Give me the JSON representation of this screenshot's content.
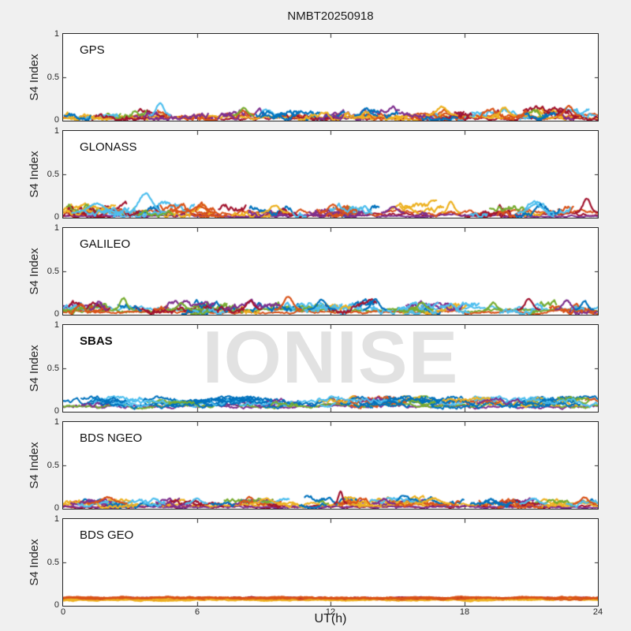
{
  "figure": {
    "title": "NMBT20250918"
  },
  "watermark": {
    "text": "IONISE"
  },
  "chart_data": {
    "type": "line",
    "title": "NMBT20250918",
    "xlabel": "UT(h)",
    "ylabel": "S4 Index",
    "xlim": [
      0,
      24
    ],
    "ylim": [
      0,
      1
    ],
    "xticks": [
      0,
      6,
      12,
      18,
      24
    ],
    "yticks": [
      0,
      0.5,
      1
    ],
    "xtick_labels": [
      "0",
      "6",
      "12",
      "18",
      "24"
    ],
    "ytick_labels": [
      "0",
      "0.5",
      "1"
    ],
    "grid": false,
    "legend": "none",
    "axis_color": "#262626",
    "background": "#f0f0f0",
    "palette": [
      "#0072BD",
      "#D95319",
      "#EDB120",
      "#7E2F8E",
      "#77AC30",
      "#4DBEEE",
      "#A2142F"
    ],
    "panels": [
      {
        "label": "GPS",
        "bold": false,
        "seed": 11,
        "s4_typical": [
          0.02,
          0.15
        ],
        "series": {
          "count": 62,
          "len": [
            0.4,
            2.4
          ],
          "base": [
            0.02,
            0.1
          ],
          "jitter": 0.028,
          "vmax": 0.17,
          "lw": 2.2,
          "colors": [
            0,
            1,
            2,
            3,
            4,
            5,
            6
          ]
        },
        "baselines": [
          {
            "c": 6,
            "base": 0.03,
            "j": 0.012
          },
          {
            "c": 1,
            "base": 0.05,
            "j": 0.015
          },
          {
            "c": 2,
            "base": 0.04,
            "j": 0.012
          }
        ],
        "events": [
          {
            "t": 4.35,
            "v": 0.2,
            "c": 5,
            "w": 0.5
          },
          {
            "t": 8.1,
            "v": 0.15,
            "c": 4,
            "w": 0.45
          },
          {
            "t": 13.6,
            "v": 0.14,
            "c": 0,
            "w": 0.5
          },
          {
            "t": 17.0,
            "v": 0.16,
            "c": 2,
            "w": 0.7
          },
          {
            "t": 19.8,
            "v": 0.15,
            "c": 2,
            "w": 0.5
          },
          {
            "t": 22.7,
            "v": 0.17,
            "c": 1,
            "w": 0.5
          }
        ]
      },
      {
        "label": "GLONASS",
        "bold": false,
        "seed": 22,
        "s4_typical": [
          0.02,
          0.3
        ],
        "series": {
          "count": 55,
          "len": [
            0.4,
            2.4
          ],
          "base": [
            0.02,
            0.12
          ],
          "jitter": 0.03,
          "vmax": 0.2,
          "lw": 2.2,
          "colors": [
            0,
            1,
            2,
            3,
            4,
            5,
            6
          ]
        },
        "baselines": [
          {
            "c": 6,
            "base": 0.03,
            "j": 0.012
          },
          {
            "c": 3,
            "base": 0.02,
            "j": 0.008
          },
          {
            "c": 1,
            "base": 0.06,
            "j": 0.015
          }
        ],
        "events": [
          {
            "t": 1.5,
            "v": 0.16,
            "c": 5,
            "w": 1.1
          },
          {
            "t": 3.7,
            "v": 0.28,
            "c": 5,
            "w": 0.9
          },
          {
            "t": 6.1,
            "v": 0.13,
            "c": 1,
            "w": 0.8
          },
          {
            "t": 9.5,
            "v": 0.14,
            "c": 2,
            "w": 0.6
          },
          {
            "t": 12.1,
            "v": 0.15,
            "c": 1,
            "w": 0.6
          },
          {
            "t": 14.8,
            "v": 0.13,
            "c": 3,
            "w": 0.5
          },
          {
            "t": 17.4,
            "v": 0.19,
            "c": 2,
            "w": 0.4
          },
          {
            "t": 21.2,
            "v": 0.16,
            "c": 5,
            "w": 0.8
          },
          {
            "t": 23.5,
            "v": 0.22,
            "c": 6,
            "w": 0.5
          }
        ]
      },
      {
        "label": "GALILEO",
        "bold": false,
        "seed": 33,
        "s4_typical": [
          0.03,
          0.22
        ],
        "series": {
          "count": 58,
          "len": [
            0.4,
            2.6
          ],
          "base": [
            0.03,
            0.11
          ],
          "jitter": 0.03,
          "vmax": 0.18,
          "lw": 2.2,
          "colors": [
            5,
            5,
            5,
            0,
            0,
            1,
            4,
            4,
            6,
            3,
            2
          ]
        },
        "baselines": [
          {
            "c": 5,
            "base": 0.06,
            "j": 0.015
          },
          {
            "c": 4,
            "base": 0.05,
            "j": 0.012
          },
          {
            "c": 1,
            "base": 0.03,
            "j": 0.01
          }
        ],
        "events": [
          {
            "t": 1.6,
            "v": 0.15,
            "c": 3,
            "w": 0.4
          },
          {
            "t": 2.7,
            "v": 0.19,
            "c": 4,
            "w": 0.45
          },
          {
            "t": 5.3,
            "v": 0.13,
            "c": 4,
            "w": 0.5
          },
          {
            "t": 8.4,
            "v": 0.16,
            "c": 6,
            "w": 0.5
          },
          {
            "t": 10.1,
            "v": 0.21,
            "c": 1,
            "w": 0.6
          },
          {
            "t": 11.6,
            "v": 0.17,
            "c": 0,
            "w": 0.6
          },
          {
            "t": 14.0,
            "v": 0.18,
            "c": 0,
            "w": 0.5
          },
          {
            "t": 16.1,
            "v": 0.14,
            "c": 4,
            "w": 0.5
          },
          {
            "t": 19.3,
            "v": 0.14,
            "c": 4,
            "w": 0.4
          },
          {
            "t": 20.9,
            "v": 0.18,
            "c": 6,
            "w": 0.5
          },
          {
            "t": 22.6,
            "v": 0.17,
            "c": 3,
            "w": 0.5
          },
          {
            "t": 23.4,
            "v": 0.16,
            "c": 0,
            "w": 0.4
          }
        ]
      },
      {
        "label": "SBAS",
        "bold": true,
        "seed": 44,
        "s4_typical": [
          0.05,
          0.17
        ],
        "series": {
          "count": 95,
          "len": [
            0.8,
            2.8
          ],
          "base": [
            0.08,
            0.15
          ],
          "jitter": 0.02,
          "vmax": 0.18,
          "lw": 2.0,
          "colors": [
            0,
            0,
            0,
            0,
            5,
            5,
            5,
            0,
            5,
            0,
            4,
            3,
            0,
            5,
            1,
            2
          ]
        },
        "baselines": [
          {
            "c": 3,
            "base": 0.06,
            "j": 0.012
          },
          {
            "c": 4,
            "base": 0.07,
            "j": 0.012
          }
        ],
        "events": []
      },
      {
        "label": "BDS NGEO",
        "bold": false,
        "seed": 55,
        "s4_typical": [
          0.02,
          0.21
        ],
        "series": {
          "count": 60,
          "len": [
            0.5,
            2.5
          ],
          "base": [
            0.03,
            0.1
          ],
          "jitter": 0.022,
          "vmax": 0.15,
          "lw": 2.2,
          "colors": [
            1,
            1,
            2,
            2,
            0,
            0,
            5,
            6,
            4,
            3,
            1,
            2
          ]
        },
        "baselines": [
          {
            "c": 6,
            "base": 0.025,
            "j": 0.01
          },
          {
            "c": 3,
            "base": 0.02,
            "j": 0.008
          },
          {
            "c": 2,
            "base": 0.05,
            "j": 0.012
          }
        ],
        "events": [
          {
            "t": 2.0,
            "v": 0.13,
            "c": 1,
            "w": 0.9
          },
          {
            "t": 4.1,
            "v": 0.12,
            "c": 5,
            "w": 0.5
          },
          {
            "t": 6.0,
            "v": 0.12,
            "c": 5,
            "w": 0.5
          },
          {
            "t": 9.1,
            "v": 0.12,
            "c": 2,
            "w": 0.7
          },
          {
            "t": 12.45,
            "v": 0.2,
            "c": 6,
            "w": 0.28
          },
          {
            "t": 14.4,
            "v": 0.11,
            "c": 3,
            "w": 0.5
          },
          {
            "t": 16.6,
            "v": 0.12,
            "c": 2,
            "w": 0.8
          },
          {
            "t": 19.2,
            "v": 0.11,
            "c": 0,
            "w": 0.5
          },
          {
            "t": 21.1,
            "v": 0.12,
            "c": 5,
            "w": 0.6
          },
          {
            "t": 23.4,
            "v": 0.13,
            "c": 1,
            "w": 0.5
          }
        ]
      },
      {
        "label": "BDS GEO",
        "bold": false,
        "seed": 66,
        "s4_typical": [
          0.06,
          0.1
        ],
        "series": {
          "lines": [
            {
              "c": 2,
              "base": 0.068,
              "j": 0.005
            },
            {
              "c": 2,
              "base": 0.078,
              "j": 0.004
            },
            {
              "c": 1,
              "base": 0.082,
              "j": 0.005
            },
            {
              "c": 1,
              "base": 0.088,
              "j": 0.006
            },
            {
              "c": 6,
              "base": 0.09,
              "j": 0.004
            },
            {
              "c": 2,
              "base": 0.073,
              "j": 0.004
            },
            {
              "c": 1,
              "base": 0.094,
              "j": 0.005
            },
            {
              "c": 1,
              "base": 0.085,
              "j": 0.006
            }
          ]
        },
        "baselines": [],
        "events": []
      }
    ]
  }
}
